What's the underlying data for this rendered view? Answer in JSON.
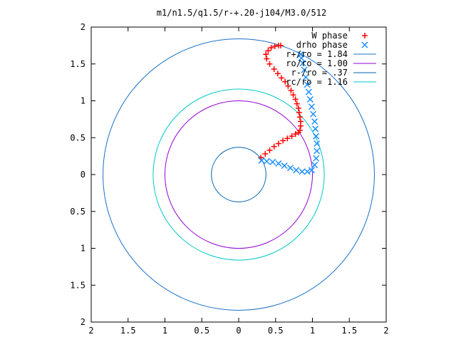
{
  "chart_data": {
    "type": "scatter",
    "title": "m1/n1.5/q1.5/r-+.20-j104/M3.0/512",
    "xlabel": "",
    "ylabel": "",
    "xlim": [
      -2,
      2
    ],
    "ylim": [
      -2,
      2
    ],
    "x_tick_values": [
      -2,
      -1.5,
      -1,
      -0.5,
      0,
      0.5,
      1,
      1.5,
      2
    ],
    "x_tick_labels": [
      "2",
      "1.5",
      "1",
      "0.5",
      "0",
      "0.5",
      "1",
      "1.5",
      "2"
    ],
    "y_tick_values": [
      2,
      1.5,
      1,
      0.5,
      0,
      -0.5,
      -1,
      -1.5,
      -2
    ],
    "y_tick_labels": [
      "2",
      "1.5",
      "1",
      "0.5",
      "0",
      "0.5",
      "1",
      "1.5",
      "2"
    ],
    "grid": false,
    "legend_position": "top-right",
    "series": [
      {
        "name": "W phase",
        "kind": "points",
        "marker": "+",
        "color": "#ff0000",
        "points": [
          [
            0.3,
            0.23
          ],
          [
            0.36,
            0.28
          ],
          [
            0.42,
            0.33
          ],
          [
            0.48,
            0.38
          ],
          [
            0.54,
            0.42
          ],
          [
            0.6,
            0.46
          ],
          [
            0.66,
            0.49
          ],
          [
            0.72,
            0.52
          ],
          [
            0.77,
            0.55
          ],
          [
            0.81,
            0.57
          ],
          [
            0.83,
            0.6
          ],
          [
            0.84,
            0.66
          ],
          [
            0.84,
            0.72
          ],
          [
            0.83,
            0.78
          ],
          [
            0.82,
            0.84
          ],
          [
            0.81,
            0.9
          ],
          [
            0.79,
            0.96
          ],
          [
            0.77,
            1.02
          ],
          [
            0.74,
            1.08
          ],
          [
            0.71,
            1.14
          ],
          [
            0.67,
            1.2
          ],
          [
            0.63,
            1.26
          ],
          [
            0.58,
            1.31
          ],
          [
            0.53,
            1.37
          ],
          [
            0.48,
            1.43
          ],
          [
            0.42,
            1.5
          ],
          [
            0.38,
            1.57
          ],
          [
            0.37,
            1.63
          ],
          [
            0.4,
            1.68
          ],
          [
            0.44,
            1.72
          ],
          [
            0.49,
            1.74
          ],
          [
            0.54,
            1.75
          ],
          [
            0.57,
            1.75
          ]
        ]
      },
      {
        "name": "drho phase",
        "kind": "points",
        "marker": "x",
        "color": "#1e90ff",
        "points": [
          [
            0.31,
            0.19
          ],
          [
            0.38,
            0.18
          ],
          [
            0.46,
            0.17
          ],
          [
            0.54,
            0.15
          ],
          [
            0.62,
            0.12
          ],
          [
            0.7,
            0.09
          ],
          [
            0.78,
            0.06
          ],
          [
            0.86,
            0.04
          ],
          [
            0.93,
            0.04
          ],
          [
            0.99,
            0.06
          ],
          [
            1.03,
            0.13
          ],
          [
            1.05,
            0.22
          ],
          [
            1.06,
            0.32
          ],
          [
            1.06,
            0.42
          ],
          [
            1.05,
            0.52
          ],
          [
            1.04,
            0.62
          ],
          [
            1.03,
            0.72
          ],
          [
            1.01,
            0.82
          ],
          [
            0.99,
            0.92
          ],
          [
            0.97,
            1.02
          ],
          [
            0.95,
            1.12
          ],
          [
            0.93,
            1.22
          ],
          [
            0.91,
            1.32
          ],
          [
            0.89,
            1.42
          ],
          [
            0.87,
            1.51
          ],
          [
            0.85,
            1.58
          ],
          [
            0.84,
            1.63
          ]
        ]
      },
      {
        "name": "r+/ro = 1.84",
        "kind": "circle",
        "radius": 1.84,
        "color": "#1a70c8"
      },
      {
        "name": "ro/ro = 1.00",
        "kind": "circle",
        "radius": 1.0,
        "color": "#9400d3"
      },
      {
        "name": "r-/ro = .37",
        "kind": "circle",
        "radius": 0.37,
        "color": "#0060ad"
      },
      {
        "name": "rc/ro = 1.16",
        "kind": "circle",
        "radius": 1.16,
        "color": "#00c8c8"
      }
    ]
  }
}
